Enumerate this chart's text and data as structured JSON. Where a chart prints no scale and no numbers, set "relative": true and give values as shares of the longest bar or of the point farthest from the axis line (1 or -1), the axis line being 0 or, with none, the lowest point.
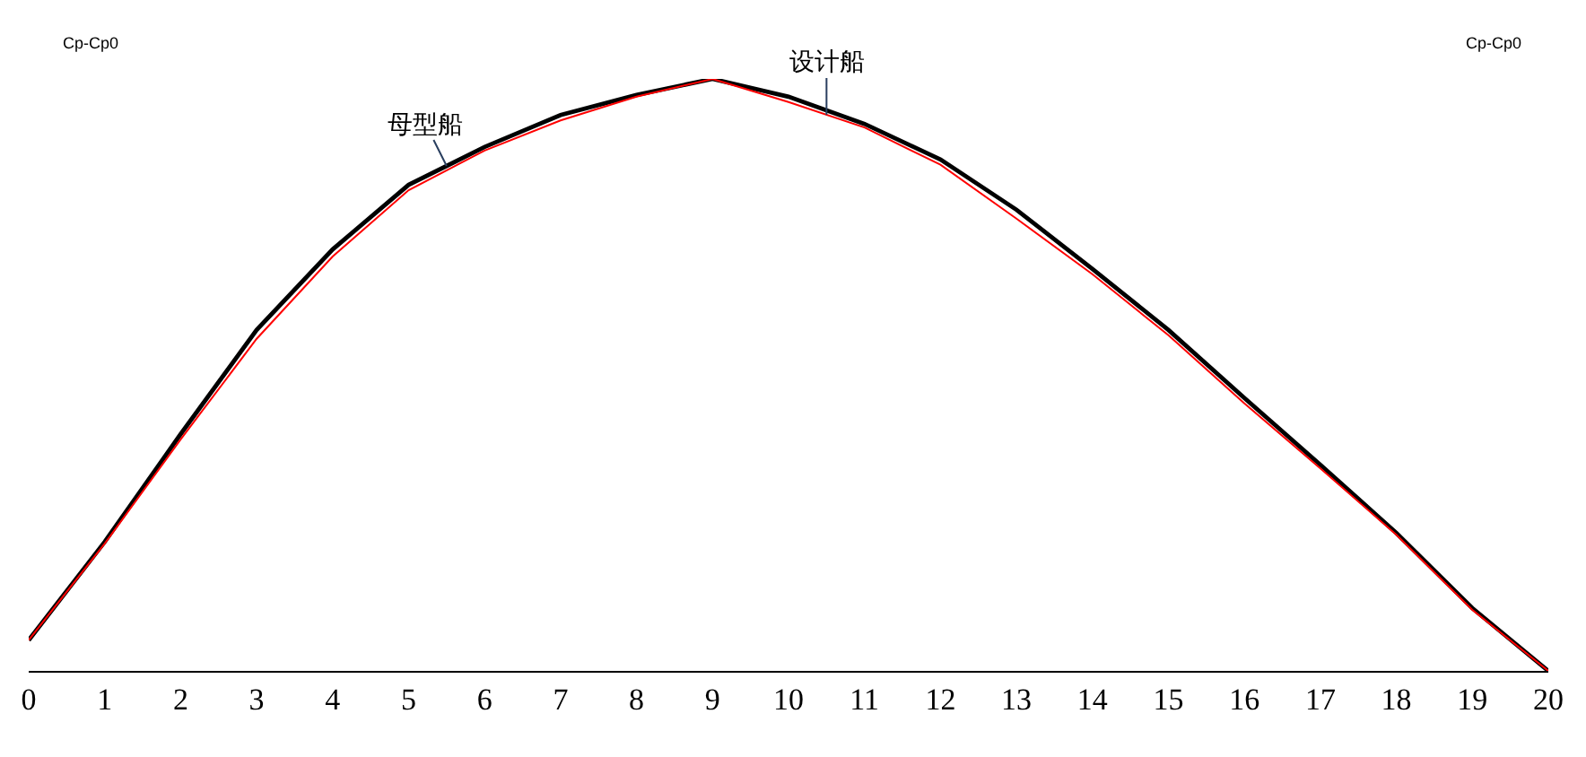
{
  "chart_data": {
    "type": "line",
    "relative": true,
    "x": [
      0,
      1,
      2,
      3,
      4,
      5,
      6,
      7,
      8,
      9,
      10,
      11,
      12,
      13,
      14,
      15,
      16,
      17,
      18,
      19,
      20
    ],
    "xlim": [
      0,
      20
    ],
    "xticks": [
      0,
      1,
      2,
      3,
      4,
      5,
      6,
      7,
      8,
      9,
      10,
      11,
      12,
      13,
      14,
      15,
      16,
      17,
      18,
      19,
      20
    ],
    "series": [
      {
        "name": "母型船",
        "color": "#000000",
        "values": [
          0.052,
          0.218,
          0.4,
          0.576,
          0.712,
          0.821,
          0.885,
          0.939,
          0.973,
          1.0,
          0.97,
          0.924,
          0.864,
          0.779,
          0.679,
          0.576,
          0.461,
          0.348,
          0.233,
          0.106,
          0.0
        ]
      },
      {
        "name": "设计船",
        "color": "#ff0000",
        "values": [
          0.052,
          0.215,
          0.391,
          0.561,
          0.7,
          0.812,
          0.879,
          0.93,
          0.97,
          1.0,
          0.961,
          0.918,
          0.855,
          0.764,
          0.67,
          0.567,
          0.452,
          0.342,
          0.23,
          0.103,
          0.0
        ]
      }
    ],
    "annotations": [
      "Cp-Cp0",
      "Cp-Cp0"
    ],
    "grid": false,
    "legend": false,
    "marker": "none",
    "line_style": "solid"
  }
}
